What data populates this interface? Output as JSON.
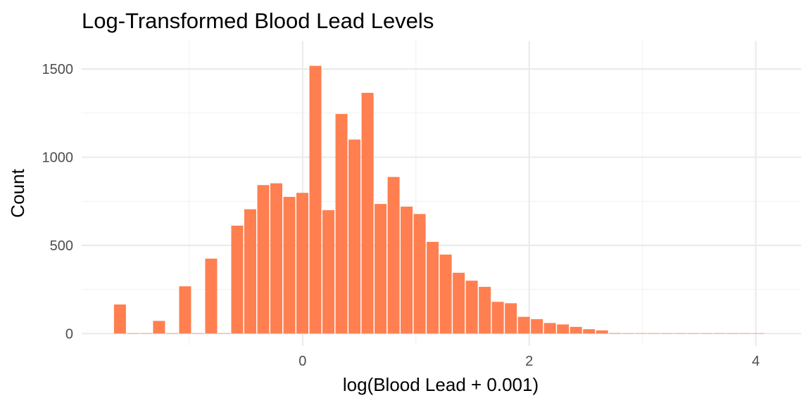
{
  "chart_data": {
    "type": "bar",
    "title": "Log-Transformed Blood Lead Levels",
    "xlabel": "log(Blood Lead + 0.001)",
    "ylabel": "Count",
    "xlim": [
      -1.95,
      4.4
    ],
    "ylim": [
      -70,
      1660
    ],
    "x_ticks": [
      0,
      2,
      4
    ],
    "x_tick_labels": [
      "0",
      "2",
      "4"
    ],
    "x_minor_ticks": [
      -1,
      1,
      3
    ],
    "y_ticks": [
      0,
      500,
      1000,
      1500
    ],
    "y_tick_labels": [
      "0",
      "500",
      "1000",
      "1500"
    ],
    "y_minor_ticks": [
      250,
      750,
      1250
    ],
    "bin_width": 0.115,
    "bins": [
      {
        "x": -1.612,
        "count": 165
      },
      {
        "x": -1.497,
        "count": 0
      },
      {
        "x": -1.382,
        "count": 0
      },
      {
        "x": -1.267,
        "count": 72
      },
      {
        "x": -1.152,
        "count": 0
      },
      {
        "x": -1.037,
        "count": 268
      },
      {
        "x": -0.922,
        "count": 0
      },
      {
        "x": -0.807,
        "count": 425
      },
      {
        "x": -0.692,
        "count": 0
      },
      {
        "x": -0.577,
        "count": 612
      },
      {
        "x": -0.462,
        "count": 705
      },
      {
        "x": -0.347,
        "count": 842
      },
      {
        "x": -0.232,
        "count": 852
      },
      {
        "x": -0.117,
        "count": 775
      },
      {
        "x": -0.002,
        "count": 798
      },
      {
        "x": 0.113,
        "count": 1518
      },
      {
        "x": 0.228,
        "count": 700
      },
      {
        "x": 0.343,
        "count": 1245
      },
      {
        "x": 0.458,
        "count": 1100
      },
      {
        "x": 0.573,
        "count": 1365
      },
      {
        "x": 0.688,
        "count": 735
      },
      {
        "x": 0.803,
        "count": 888
      },
      {
        "x": 0.918,
        "count": 720
      },
      {
        "x": 1.033,
        "count": 678
      },
      {
        "x": 1.148,
        "count": 520
      },
      {
        "x": 1.263,
        "count": 448
      },
      {
        "x": 1.378,
        "count": 345
      },
      {
        "x": 1.493,
        "count": 300
      },
      {
        "x": 1.608,
        "count": 265
      },
      {
        "x": 1.723,
        "count": 180
      },
      {
        "x": 1.838,
        "count": 172
      },
      {
        "x": 1.953,
        "count": 95
      },
      {
        "x": 2.068,
        "count": 82
      },
      {
        "x": 2.183,
        "count": 60
      },
      {
        "x": 2.298,
        "count": 52
      },
      {
        "x": 2.413,
        "count": 38
      },
      {
        "x": 2.528,
        "count": 25
      },
      {
        "x": 2.643,
        "count": 18
      },
      {
        "x": 2.758,
        "count": 3
      },
      {
        "x": 2.873,
        "count": 2
      },
      {
        "x": 2.988,
        "count": 2
      },
      {
        "x": 3.103,
        "count": 1
      },
      {
        "x": 3.218,
        "count": 1
      },
      {
        "x": 3.333,
        "count": 1
      },
      {
        "x": 3.448,
        "count": 1
      },
      {
        "x": 3.563,
        "count": 0
      },
      {
        "x": 3.678,
        "count": 0
      },
      {
        "x": 3.793,
        "count": 0
      },
      {
        "x": 3.908,
        "count": 1
      },
      {
        "x": 4.023,
        "count": 1
      }
    ],
    "colors": {
      "bar": "#ff7f50",
      "grid": "#ebebeb",
      "tick_text": "#4d4d4d"
    },
    "grid": true,
    "legend": "none"
  }
}
